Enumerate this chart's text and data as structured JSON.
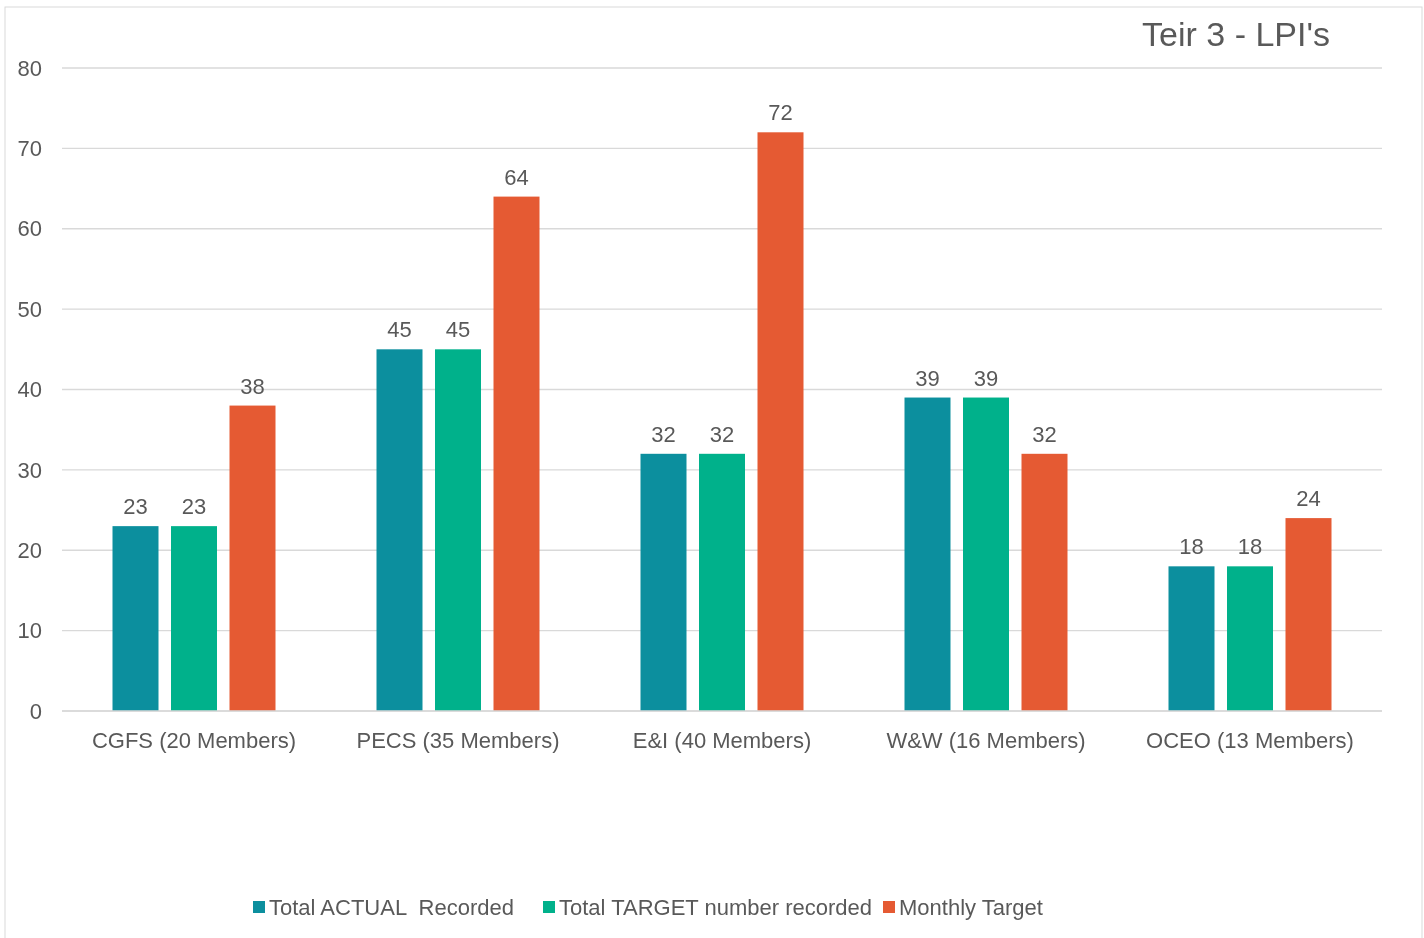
{
  "chart_data": {
    "type": "bar",
    "title": "Teir 3 - LPI's",
    "categories": [
      "CGFS (20 Members)",
      "PECS (35 Members)",
      "E&I (40 Members)",
      "W&W (16 Members)",
      "OCEO (13 Members)"
    ],
    "series": [
      {
        "name": "Total ACTUAL  Recorded",
        "color": "#0c8f9e",
        "values": [
          23,
          45,
          32,
          39,
          18
        ]
      },
      {
        "name": "Total TARGET number recorded",
        "color": "#00b18b",
        "values": [
          23,
          45,
          32,
          39,
          18
        ]
      },
      {
        "name": "Monthly Target",
        "color": "#e55a33",
        "values": [
          38,
          64,
          72,
          32,
          24
        ]
      }
    ],
    "ylim": [
      0,
      80
    ],
    "yticks": [
      0,
      10,
      20,
      30,
      40,
      50,
      60,
      70,
      80
    ],
    "grid": "y",
    "legend": "bottom",
    "data_labels": true
  }
}
